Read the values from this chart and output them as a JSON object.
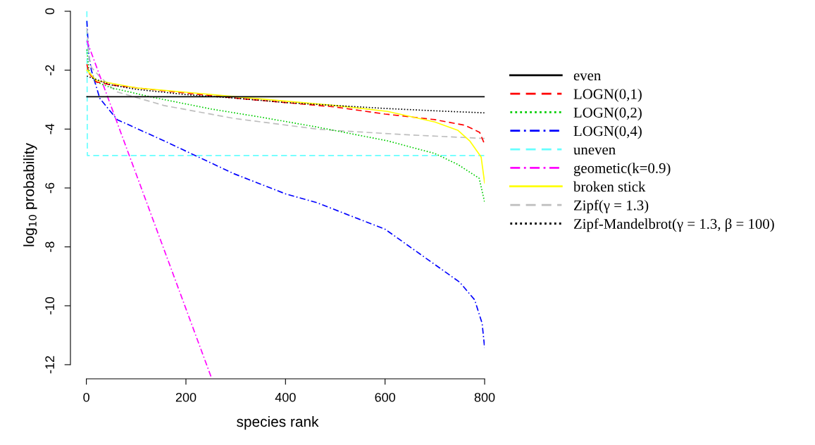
{
  "chart_data": {
    "type": "line",
    "xlabel": "species rank",
    "ylabel": "log$_{10}$ probability",
    "xlim": [
      -32,
      800
    ],
    "ylim": [
      -12.48,
      0
    ],
    "xticks": [
      0,
      200,
      400,
      600,
      800
    ],
    "yticks": [
      -12,
      -10,
      -8,
      -6,
      -4,
      -2,
      0
    ],
    "grid": false,
    "legend": "right",
    "series": [
      {
        "name": "even",
        "color": "#000000",
        "line_style": "solid",
        "x": [
          1,
          800
        ],
        "values": [
          -2.9,
          -2.9
        ]
      },
      {
        "name": "LOGN(0,1)",
        "color": "#ff0000",
        "line_style": "dashed",
        "x": [
          1,
          5,
          20,
          50,
          100,
          200,
          300,
          400,
          500,
          600,
          700,
          760,
          790,
          800
        ],
        "values": [
          -1.8,
          -2.1,
          -2.4,
          -2.5,
          -2.6,
          -2.78,
          -2.95,
          -3.1,
          -3.25,
          -3.49,
          -3.68,
          -3.87,
          -4.11,
          -4.52
        ]
      },
      {
        "name": "LOGN(0,2)",
        "color": "#00cd00",
        "line_style": "dotted",
        "x": [
          1,
          5,
          10,
          20,
          50,
          133,
          251,
          345,
          463,
          605,
          700,
          746,
          789,
          800
        ],
        "values": [
          -1.3,
          -2.0,
          -2.2,
          -2.4,
          -2.6,
          -2.92,
          -3.32,
          -3.58,
          -3.93,
          -4.4,
          -4.83,
          -5.2,
          -5.67,
          -6.48
        ]
      },
      {
        "name": "LOGN(0,4)",
        "color": "#0000ff",
        "line_style": "dashdot",
        "x": [
          1,
          5,
          10,
          27,
          62,
          156,
          297,
          400,
          463,
          600,
          700,
          750,
          780,
          795,
          800
        ],
        "values": [
          -0.33,
          -1.5,
          -2.0,
          -2.96,
          -3.68,
          -4.4,
          -5.52,
          -6.2,
          -6.5,
          -7.4,
          -8.6,
          -9.2,
          -9.8,
          -10.6,
          -11.43
        ]
      },
      {
        "name": "uneven",
        "color": "#66ffff",
        "line_style": "dashed",
        "x": [
          1,
          2,
          800
        ],
        "values": [
          0,
          -4.9,
          -4.9
        ]
      },
      {
        "name": "geometic(k=0.9)",
        "color": "#ff00ff",
        "line_style": "dashdot",
        "x": [
          1,
          252
        ],
        "values": [
          -1.0,
          -12.48
        ]
      },
      {
        "name": "broken stick",
        "color": "#ffff00",
        "line_style": "solid",
        "x": [
          1,
          20,
          100,
          200,
          300,
          400,
          500,
          605,
          700,
          746,
          770,
          793,
          800
        ],
        "values": [
          -2.0,
          -2.35,
          -2.6,
          -2.75,
          -2.9,
          -3.05,
          -3.2,
          -3.4,
          -3.76,
          -4.04,
          -4.4,
          -4.95,
          -5.83
        ]
      },
      {
        "name": "Zipf(γ = 1.3)",
        "color": "#bebebe",
        "line_style": "dashed",
        "x": [
          1,
          5,
          10,
          24,
          60,
          156,
          297,
          463,
          510,
          652,
          800
        ],
        "values": [
          -0.57,
          -1.5,
          -1.9,
          -2.17,
          -2.73,
          -3.2,
          -3.64,
          -4.0,
          -4.06,
          -4.2,
          -4.32
        ]
      },
      {
        "name": "Zipf-Mandelbrot(γ = 1.3, β = 100)",
        "color": "#000000",
        "line_style": "dotted",
        "x": [
          1,
          50,
          100,
          200,
          300,
          400,
          500,
          600,
          700,
          800
        ],
        "values": [
          -2.2,
          -2.5,
          -2.65,
          -2.83,
          -2.95,
          -3.1,
          -3.2,
          -3.3,
          -3.38,
          -3.45
        ]
      }
    ]
  }
}
